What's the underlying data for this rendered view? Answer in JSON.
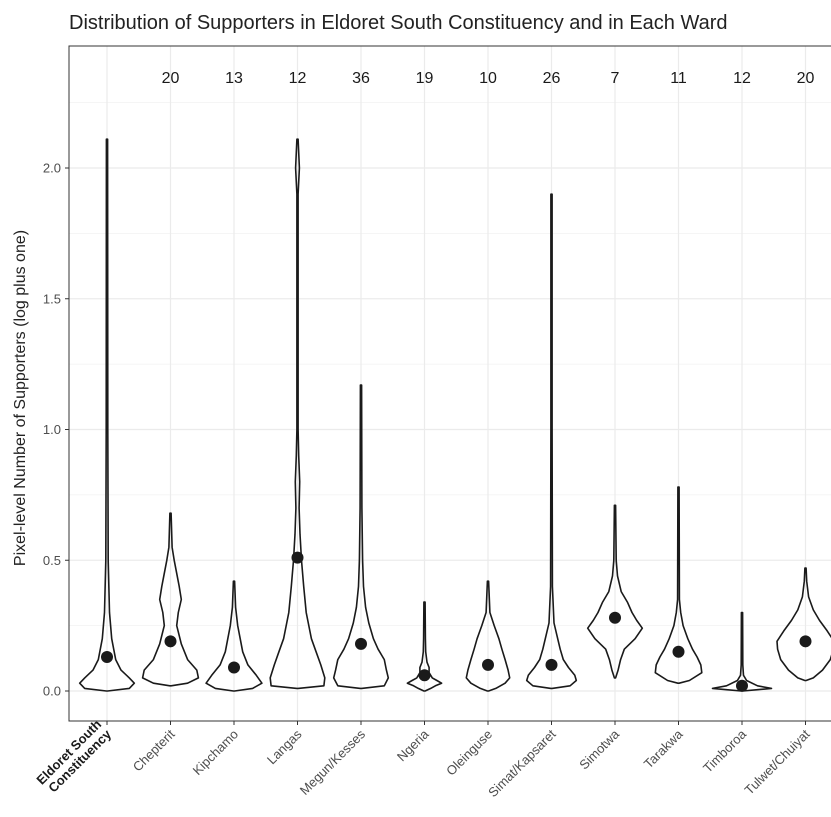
{
  "chart_data": {
    "type": "violin",
    "title": "Distribution of Supporters in Eldoret South Constituency and in Each Ward",
    "xlabel": "",
    "ylabel": "Pixel-level Number of Supporters (log plus one)",
    "ylim": [
      -0.05,
      2.45
    ],
    "yticks": [
      0.0,
      0.5,
      1.0,
      1.5,
      2.0
    ],
    "ytick_labels": [
      "0.0",
      "0.5",
      "1.0",
      "1.5",
      "2.0"
    ],
    "grid": true,
    "categories": [
      "Eldoret South Constituency",
      "Chepterit",
      "Kipchamo",
      "Langas",
      "Megun/Kesses",
      "Ngeria",
      "Oleinguse",
      "Simat/Kapsaret",
      "Simotwa",
      "Tarakwa",
      "Timboroa",
      "Tulwet/Chuiyat"
    ],
    "category_lines": [
      [
        "Eldoret South",
        "Constituency"
      ],
      [
        "Chepterit"
      ],
      [
        "Kipchamo"
      ],
      [
        "Langas"
      ],
      [
        "Megun/Kesses"
      ],
      [
        "Ngeria"
      ],
      [
        "Oleinguse"
      ],
      [
        "Simat/Kapsaret"
      ],
      [
        "Simotwa"
      ],
      [
        "Tarakwa"
      ],
      [
        "Timboroa"
      ],
      [
        "Tulwet/Chuiyat"
      ]
    ],
    "highlight_category": "Eldoret South Constituency",
    "counts": [
      "",
      "20",
      "13",
      "12",
      "36",
      "19",
      "10",
      "26",
      "7",
      "11",
      "12",
      "20"
    ],
    "means": [
      0.13,
      0.19,
      0.09,
      0.51,
      0.18,
      0.06,
      0.1,
      0.1,
      0.28,
      0.15,
      0.02,
      0.19
    ],
    "violins": [
      {
        "min": 0.0,
        "max": 2.11,
        "shape": [
          [
            0.0,
            0.0
          ],
          [
            0.01,
            0.72
          ],
          [
            0.03,
            0.88
          ],
          [
            0.05,
            0.72
          ],
          [
            0.08,
            0.45
          ],
          [
            0.12,
            0.28
          ],
          [
            0.2,
            0.15
          ],
          [
            0.3,
            0.08
          ],
          [
            0.5,
            0.04
          ],
          [
            1.0,
            0.025
          ],
          [
            2.11,
            0.02
          ]
        ]
      },
      {
        "min": 0.02,
        "max": 0.68,
        "shape": [
          [
            0.02,
            0.0
          ],
          [
            0.03,
            0.55
          ],
          [
            0.05,
            0.9
          ],
          [
            0.08,
            0.85
          ],
          [
            0.12,
            0.55
          ],
          [
            0.18,
            0.35
          ],
          [
            0.25,
            0.2
          ],
          [
            0.3,
            0.25
          ],
          [
            0.35,
            0.35
          ],
          [
            0.4,
            0.28
          ],
          [
            0.45,
            0.2
          ],
          [
            0.5,
            0.12
          ],
          [
            0.55,
            0.05
          ],
          [
            0.68,
            0.02
          ]
        ]
      },
      {
        "min": 0.0,
        "max": 0.42,
        "shape": [
          [
            0.0,
            0.0
          ],
          [
            0.01,
            0.6
          ],
          [
            0.03,
            0.9
          ],
          [
            0.06,
            0.72
          ],
          [
            0.1,
            0.45
          ],
          [
            0.15,
            0.28
          ],
          [
            0.2,
            0.2
          ],
          [
            0.25,
            0.12
          ],
          [
            0.32,
            0.05
          ],
          [
            0.42,
            0.02
          ]
        ]
      },
      {
        "min": 0.01,
        "max": 2.11,
        "shape": [
          [
            0.01,
            0.0
          ],
          [
            0.02,
            0.85
          ],
          [
            0.05,
            0.88
          ],
          [
            0.1,
            0.75
          ],
          [
            0.15,
            0.6
          ],
          [
            0.2,
            0.45
          ],
          [
            0.3,
            0.28
          ],
          [
            0.4,
            0.2
          ],
          [
            0.5,
            0.13
          ],
          [
            0.6,
            0.08
          ],
          [
            0.7,
            0.05
          ],
          [
            0.8,
            0.07
          ],
          [
            0.9,
            0.04
          ],
          [
            1.0,
            0.02
          ],
          [
            1.2,
            0.015
          ],
          [
            1.9,
            0.015
          ],
          [
            2.0,
            0.06
          ],
          [
            2.11,
            0.01
          ]
        ]
      },
      {
        "min": 0.01,
        "max": 1.17,
        "shape": [
          [
            0.01,
            0.0
          ],
          [
            0.02,
            0.75
          ],
          [
            0.05,
            0.88
          ],
          [
            0.08,
            0.82
          ],
          [
            0.12,
            0.75
          ],
          [
            0.16,
            0.55
          ],
          [
            0.2,
            0.4
          ],
          [
            0.26,
            0.25
          ],
          [
            0.32,
            0.15
          ],
          [
            0.4,
            0.08
          ],
          [
            0.5,
            0.05
          ],
          [
            0.7,
            0.03
          ],
          [
            1.17,
            0.02
          ]
        ]
      },
      {
        "min": 0.0,
        "max": 0.34,
        "shape": [
          [
            0.0,
            0.0
          ],
          [
            0.01,
            0.2
          ],
          [
            0.02,
            0.35
          ],
          [
            0.03,
            0.55
          ],
          [
            0.04,
            0.4
          ],
          [
            0.05,
            0.25
          ],
          [
            0.07,
            0.15
          ],
          [
            0.09,
            0.15
          ],
          [
            0.11,
            0.08
          ],
          [
            0.15,
            0.04
          ],
          [
            0.2,
            0.03
          ],
          [
            0.34,
            0.02
          ]
        ]
      },
      {
        "min": 0.0,
        "max": 0.42,
        "shape": [
          [
            0.0,
            0.0
          ],
          [
            0.01,
            0.25
          ],
          [
            0.03,
            0.55
          ],
          [
            0.05,
            0.7
          ],
          [
            0.08,
            0.65
          ],
          [
            0.12,
            0.55
          ],
          [
            0.16,
            0.45
          ],
          [
            0.2,
            0.35
          ],
          [
            0.25,
            0.2
          ],
          [
            0.3,
            0.06
          ],
          [
            0.42,
            0.02
          ]
        ]
      },
      {
        "min": 0.01,
        "max": 1.9,
        "shape": [
          [
            0.01,
            0.0
          ],
          [
            0.02,
            0.6
          ],
          [
            0.04,
            0.8
          ],
          [
            0.06,
            0.75
          ],
          [
            0.09,
            0.55
          ],
          [
            0.12,
            0.38
          ],
          [
            0.16,
            0.28
          ],
          [
            0.2,
            0.2
          ],
          [
            0.26,
            0.08
          ],
          [
            0.4,
            0.03
          ],
          [
            1.0,
            0.02
          ],
          [
            1.9,
            0.015
          ]
        ]
      },
      {
        "min": 0.05,
        "max": 0.71,
        "shape": [
          [
            0.05,
            0.0
          ],
          [
            0.08,
            0.1
          ],
          [
            0.12,
            0.18
          ],
          [
            0.16,
            0.3
          ],
          [
            0.2,
            0.65
          ],
          [
            0.24,
            0.88
          ],
          [
            0.27,
            0.7
          ],
          [
            0.3,
            0.55
          ],
          [
            0.34,
            0.4
          ],
          [
            0.38,
            0.2
          ],
          [
            0.44,
            0.08
          ],
          [
            0.5,
            0.04
          ],
          [
            0.71,
            0.02
          ]
        ]
      },
      {
        "min": 0.03,
        "max": 0.78,
        "shape": [
          [
            0.03,
            0.0
          ],
          [
            0.04,
            0.35
          ],
          [
            0.07,
            0.75
          ],
          [
            0.1,
            0.72
          ],
          [
            0.13,
            0.6
          ],
          [
            0.16,
            0.45
          ],
          [
            0.2,
            0.3
          ],
          [
            0.25,
            0.15
          ],
          [
            0.3,
            0.07
          ],
          [
            0.35,
            0.03
          ],
          [
            0.78,
            0.02
          ]
        ]
      },
      {
        "min": 0.0,
        "max": 0.3,
        "shape": [
          [
            0.0,
            0.0
          ],
          [
            0.005,
            0.5
          ],
          [
            0.01,
            0.95
          ],
          [
            0.02,
            0.5
          ],
          [
            0.04,
            0.15
          ],
          [
            0.06,
            0.05
          ],
          [
            0.1,
            0.025
          ],
          [
            0.3,
            0.015
          ]
        ]
      },
      {
        "min": 0.04,
        "max": 0.47,
        "shape": [
          [
            0.04,
            0.0
          ],
          [
            0.05,
            0.25
          ],
          [
            0.08,
            0.55
          ],
          [
            0.12,
            0.8
          ],
          [
            0.16,
            0.9
          ],
          [
            0.19,
            0.92
          ],
          [
            0.23,
            0.7
          ],
          [
            0.27,
            0.45
          ],
          [
            0.31,
            0.25
          ],
          [
            0.36,
            0.1
          ],
          [
            0.42,
            0.04
          ],
          [
            0.47,
            0.02
          ]
        ]
      }
    ]
  }
}
